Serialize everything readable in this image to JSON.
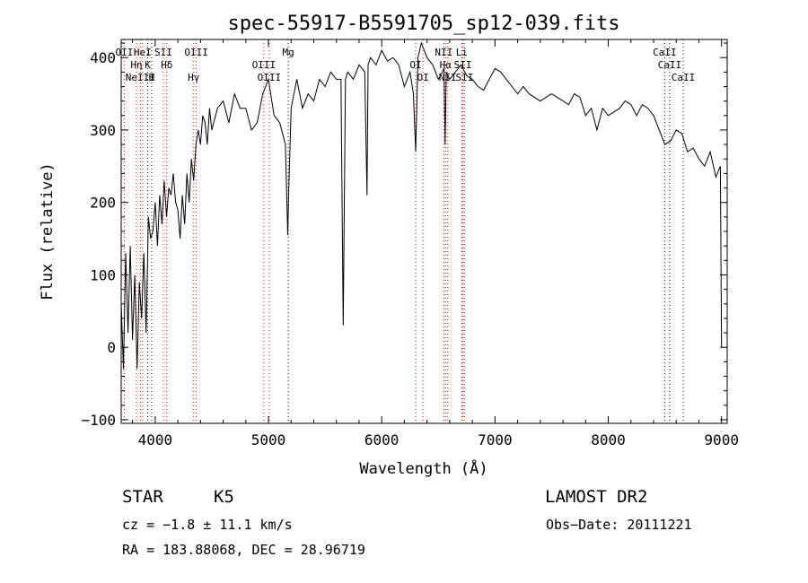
{
  "chart_data": {
    "type": "line",
    "title": "spec-55917-B5591705_sp12-039.fits",
    "xlabel": "Wavelength (Å)",
    "ylabel": "Flux (relative)",
    "xlim": [
      3700,
      9050
    ],
    "ylim": [
      -105,
      425
    ],
    "x_ticks": [
      4000,
      5000,
      6000,
      7000,
      8000,
      9000
    ],
    "y_ticks": [
      -100,
      0,
      100,
      200,
      300,
      400
    ],
    "grid": false,
    "series": [
      {
        "x": [
          3700,
          3720,
          3740,
          3760,
          3780,
          3800,
          3820,
          3840,
          3860,
          3880,
          3900,
          3920,
          3940,
          3960,
          3980,
          4000,
          4020,
          4040,
          4060,
          4080,
          4100,
          4120,
          4140,
          4160,
          4180,
          4200,
          4220,
          4240,
          4260,
          4280,
          4300,
          4320,
          4340,
          4360,
          4380,
          4400,
          4420,
          4440,
          4460,
          4480,
          4500,
          4550,
          4600,
          4650,
          4700,
          4750,
          4800,
          4850,
          4900,
          4950,
          5000,
          5050,
          5100,
          5150,
          5170,
          5180,
          5200,
          5250,
          5300,
          5350,
          5400,
          5450,
          5500,
          5550,
          5600,
          5640,
          5660,
          5680,
          5700,
          5750,
          5800,
          5850,
          5870,
          5880,
          5890,
          5900,
          5950,
          6000,
          6050,
          6100,
          6150,
          6200,
          6250,
          6280,
          6300,
          6320,
          6350,
          6400,
          6450,
          6500,
          6550,
          6560,
          6570,
          6600,
          6650,
          6700,
          6750,
          6800,
          6850,
          6900,
          6950,
          7000,
          7050,
          7100,
          7150,
          7200,
          7250,
          7300,
          7350,
          7400,
          7450,
          7500,
          7550,
          7600,
          7650,
          7700,
          7750,
          7800,
          7850,
          7900,
          7950,
          8000,
          8050,
          8100,
          8150,
          8200,
          8250,
          8300,
          8350,
          8400,
          8450,
          8500,
          8550,
          8600,
          8650,
          8700,
          8750,
          8800,
          8850,
          8900,
          8950,
          8990,
          9000
        ],
        "y": [
          60,
          -30,
          130,
          20,
          140,
          10,
          100,
          -30,
          90,
          40,
          130,
          20,
          180,
          150,
          160,
          200,
          140,
          210,
          170,
          230,
          180,
          220,
          210,
          240,
          200,
          190,
          150,
          210,
          170,
          240,
          200,
          260,
          230,
          280,
          300,
          280,
          320,
          310,
          280,
          330,
          300,
          330,
          340,
          310,
          350,
          330,
          330,
          300,
          310,
          350,
          370,
          320,
          310,
          280,
          155,
          220,
          330,
          370,
          330,
          350,
          340,
          370,
          360,
          380,
          370,
          370,
          30,
          370,
          380,
          370,
          390,
          380,
          210,
          390,
          395,
          400,
          390,
          410,
          395,
          400,
          390,
          360,
          380,
          350,
          270,
          400,
          420,
          400,
          390,
          370,
          385,
          280,
          380,
          370,
          380,
          390,
          375,
          370,
          360,
          355,
          370,
          385,
          380,
          370,
          360,
          350,
          360,
          350,
          345,
          340,
          345,
          350,
          345,
          340,
          335,
          350,
          345,
          320,
          330,
          300,
          330,
          320,
          325,
          330,
          340,
          335,
          320,
          335,
          330,
          320,
          300,
          280,
          285,
          300,
          295,
          270,
          275,
          260,
          250,
          270,
          235,
          250,
          0
        ]
      }
    ],
    "lines": [
      {
        "x": 3727,
        "label": "OII",
        "color": "#ff0000"
      },
      {
        "x": 3835,
        "label": "Hη",
        "color": "#ff0000"
      },
      {
        "x": 3869,
        "label": "NeIII",
        "color": "#ff0000"
      },
      {
        "x": 3889,
        "label": "HeI",
        "color": "#ff0000"
      },
      {
        "x": 3934,
        "label": "K",
        "color": "#000000"
      },
      {
        "x": 3969,
        "label": "H",
        "color": "#000000"
      },
      {
        "x": 4072,
        "label": "SII",
        "color": "#ff0000"
      },
      {
        "x": 4102,
        "label": "Hδ",
        "color": "#ff0000"
      },
      {
        "x": 4340,
        "label": "Hγ",
        "color": "#ff0000"
      },
      {
        "x": 4363,
        "label": "OIII",
        "color": "#ff0000"
      },
      {
        "x": 4959,
        "label": "OIII",
        "color": "#ff0000"
      },
      {
        "x": 5007,
        "label": "OIII",
        "color": "#ff0000"
      },
      {
        "x": 5175,
        "label": "Mg",
        "color": "#000000"
      },
      {
        "x": 6300,
        "label": "OI",
        "color": "#ff0000"
      },
      {
        "x": 6364,
        "label": "OI",
        "color": "#ff0000"
      },
      {
        "x": 6548,
        "label": "NII",
        "color": "#ff0000"
      },
      {
        "x": 6563,
        "label": "Hα",
        "color": "#ff0000"
      },
      {
        "x": 6583,
        "label": "NII",
        "color": "#ff0000"
      },
      {
        "x": 6707,
        "label": "Li",
        "color": "#ff0000"
      },
      {
        "x": 6716,
        "label": "SII",
        "color": "#ff0000"
      },
      {
        "x": 6731,
        "label": "SII",
        "color": "#ff0000"
      },
      {
        "x": 8498,
        "label": "CaII",
        "color": "#000000"
      },
      {
        "x": 8542,
        "label": "CaII",
        "color": "#000000"
      },
      {
        "x": 8662,
        "label": "CaII",
        "color": "#000000"
      }
    ]
  },
  "info": {
    "class": "STAR",
    "subclass": "K5",
    "survey": "LAMOST DR2",
    "cz": "cz = −1.8 ± 11.1 km/s",
    "obs_date": "Obs−Date: 20111221",
    "coords": "RA = 183.88068, DEC =  28.96719"
  }
}
